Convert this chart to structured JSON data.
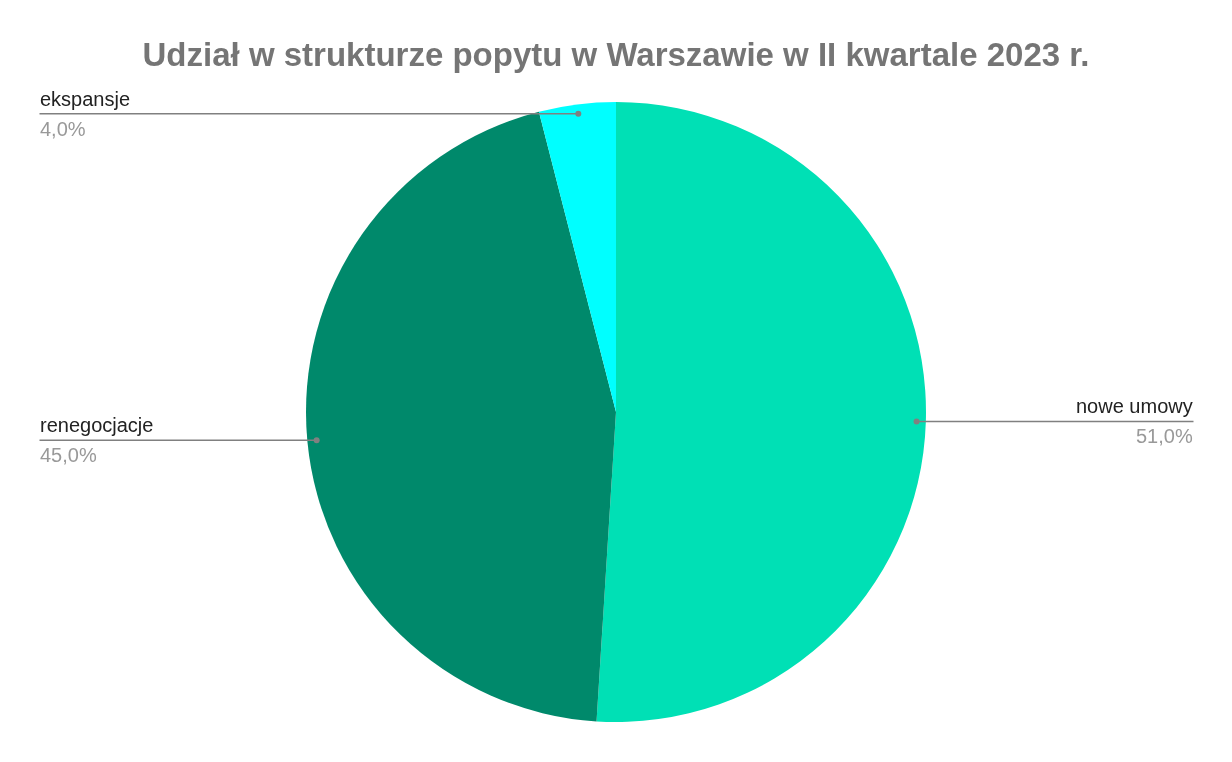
{
  "chart_data": {
    "type": "pie",
    "title": "Udział w strukturze popytu w Warszawie w II kwartale 2023 r.",
    "categories": [
      "nowe umowy",
      "renegocjacje",
      "ekspansje"
    ],
    "values": [
      51,
      45,
      4
    ],
    "value_labels": [
      "51,0%",
      "45,0%",
      "4,0%"
    ],
    "colors": [
      "#00e0b5",
      "#00896b",
      "#00ffff"
    ],
    "legend": false
  }
}
